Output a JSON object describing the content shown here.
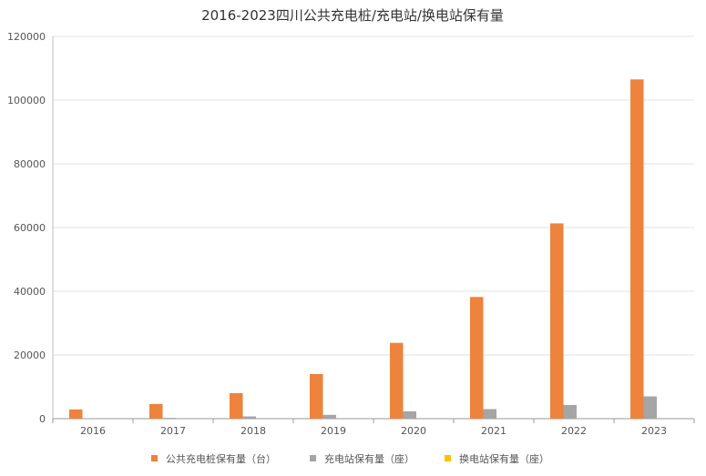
{
  "chart_data": {
    "type": "bar",
    "title": "2016-2023四川公共充电桩/充电站/换电站保有量",
    "xlabel": "",
    "ylabel": "",
    "categories": [
      "2016",
      "2017",
      "2018",
      "2019",
      "2020",
      "2021",
      "2022",
      "2023"
    ],
    "ylim": [
      0,
      120000
    ],
    "yticks": [
      0,
      20000,
      40000,
      60000,
      80000,
      100000,
      120000
    ],
    "ytick_labels": [
      "0",
      "20000",
      "40000",
      "60000",
      "80000",
      "100000",
      "120000"
    ],
    "grid": true,
    "legend_position": "bottom",
    "series": [
      {
        "name": "公共充电桩保有量（台）",
        "color": "#ED833C",
        "values": [
          2900,
          4600,
          8000,
          14000,
          23800,
          38200,
          61300,
          106500
        ]
      },
      {
        "name": "充电站保有量（座）",
        "color": "#A5A5A5",
        "values": [
          150,
          250,
          700,
          1200,
          2300,
          3000,
          4300,
          7000
        ]
      },
      {
        "name": "换电站保有量（座）",
        "color": "#FFC000",
        "values": [
          0,
          0,
          0,
          0,
          0,
          0,
          0,
          0
        ]
      }
    ]
  }
}
